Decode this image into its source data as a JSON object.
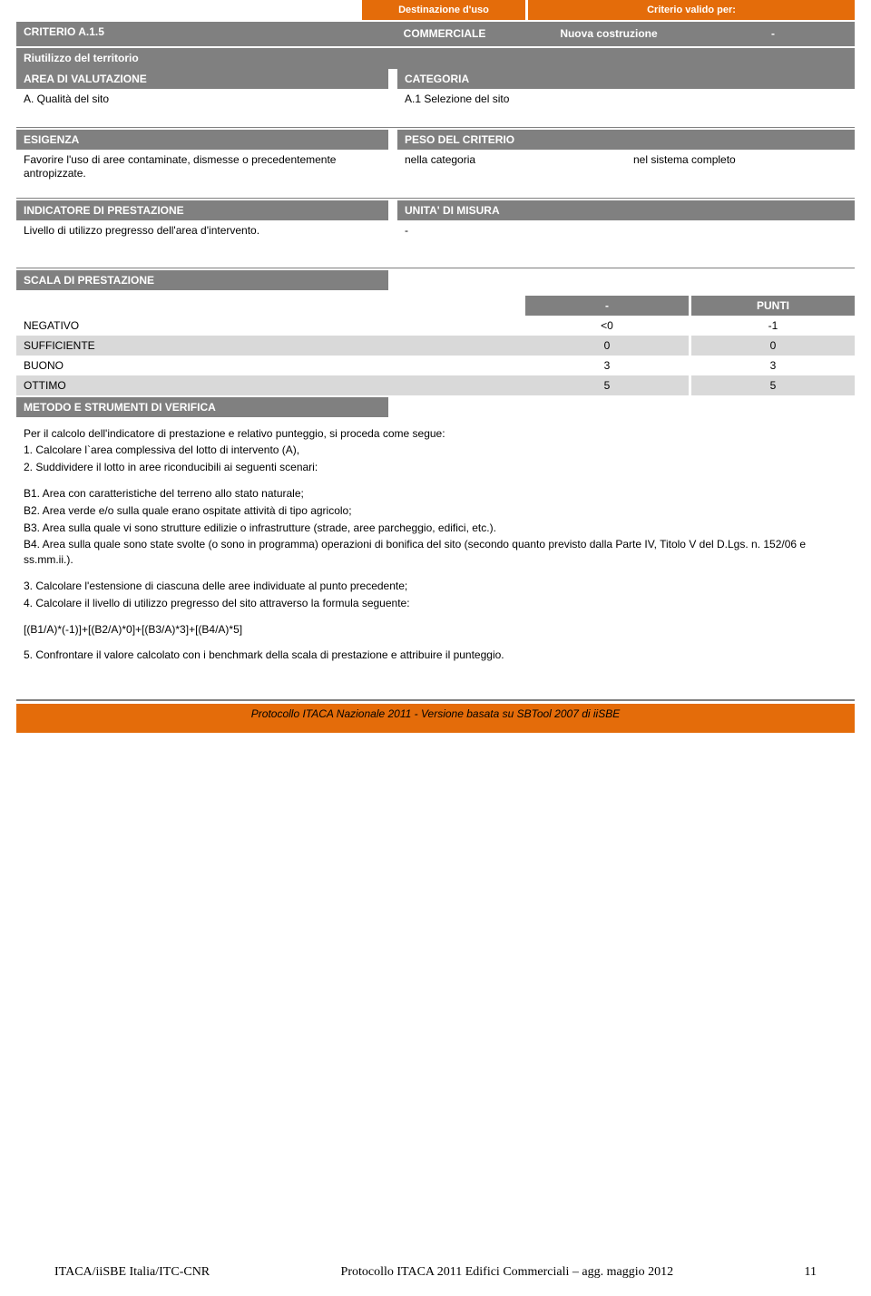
{
  "colors": {
    "orange": "#e46c0a",
    "gray_header": "#808080",
    "gray_light": "#d9d9d9",
    "gray_lighter": "#e6e6e6",
    "white": "#ffffff",
    "black": "#000000"
  },
  "header": {
    "destinazione": "Destinazione d'uso",
    "criterio_per": "Criterio valido per:",
    "criterio_code": "CRITERIO  A.1.5",
    "commerciale": "COMMERCIALE",
    "nuova": "Nuova costruzione",
    "dash": "-",
    "riutilizzo": "Riutilizzo del territorio",
    "area_val": "AREA DI VALUTAZIONE",
    "qualita": "A. Qualità del sito",
    "categoria": "CATEGORIA",
    "selezione": "A.1 Selezione del sito"
  },
  "esigenza": {
    "title": "ESIGENZA",
    "text": "Favorire l'uso di aree contaminate, dismesse o precedentemente antropizzate.",
    "peso_title": "PESO DEL CRITERIO",
    "nella_cat": "nella categoria",
    "nel_sistema": "nel sistema completo"
  },
  "indicatore": {
    "title": "INDICATORE DI PRESTAZIONE",
    "text": "Livello di utilizzo pregresso dell'area d'intervento.",
    "unita_title": "UNITA' DI MISURA",
    "unita_val": "-"
  },
  "scala": {
    "title": "SCALA DI PRESTAZIONE",
    "col_dash": "-",
    "col_punti": "PUNTI",
    "rows": [
      {
        "label": "NEGATIVO",
        "v1": "<0",
        "v2": "-1",
        "shade": "white"
      },
      {
        "label": "SUFFICIENTE",
        "v1": "0",
        "v2": "0",
        "shade": "gray"
      },
      {
        "label": "BUONO",
        "v1": "3",
        "v2": "3",
        "shade": "white"
      },
      {
        "label": "OTTIMO",
        "v1": "5",
        "v2": "5",
        "shade": "gray"
      }
    ],
    "metodo_title": "METODO E STRUMENTI DI VERIFICA"
  },
  "body": {
    "intro": "Per il calcolo dell'indicatore di prestazione e relativo punteggio, si proceda come segue:",
    "p1": "1. Calcolare l`area complessiva del lotto di intervento (A),",
    "p2": "2. Suddividere il lotto in aree riconducibili ai seguenti scenari:",
    "b1": "B1. Area con caratteristiche del terreno allo stato naturale;",
    "b2": "B2. Area verde e/o sulla quale erano ospitate attività di tipo agricolo;",
    "b3": "B3. Area sulla quale vi sono strutture edilizie o infrastrutture (strade, aree parcheggio, edifici, etc.).",
    "b4": "B4. Area sulla quale sono state svolte (o sono in programma) operazioni di bonifica del sito (secondo quanto previsto dalla Parte IV, Titolo V del D.Lgs. n. 152/06 e ss.mm.ii.).",
    "p3": "3. Calcolare l'estensione di ciascuna delle aree individuate al punto precedente;",
    "p4": "4. Calcolare il livello di utilizzo pregresso del sito attraverso la formula seguente:",
    "formula": " [(B1/A)*(-1)]+[(B2/A)*0]+[(B3/A)*3]+[(B4/A)*5]",
    "p5": "5. Confrontare il valore calcolato con i benchmark della scala di prestazione e attribuire il punteggio."
  },
  "footer_bar": "Protocollo ITACA Nazionale 2011 - Versione basata su SBTool 2007 di iiSBE",
  "footer": {
    "src": "ITACA/iiSBE Italia/ITC-CNR",
    "title": "Protocollo ITACA 2011 Edifici Commerciali – agg. maggio 2012",
    "page": "11"
  }
}
